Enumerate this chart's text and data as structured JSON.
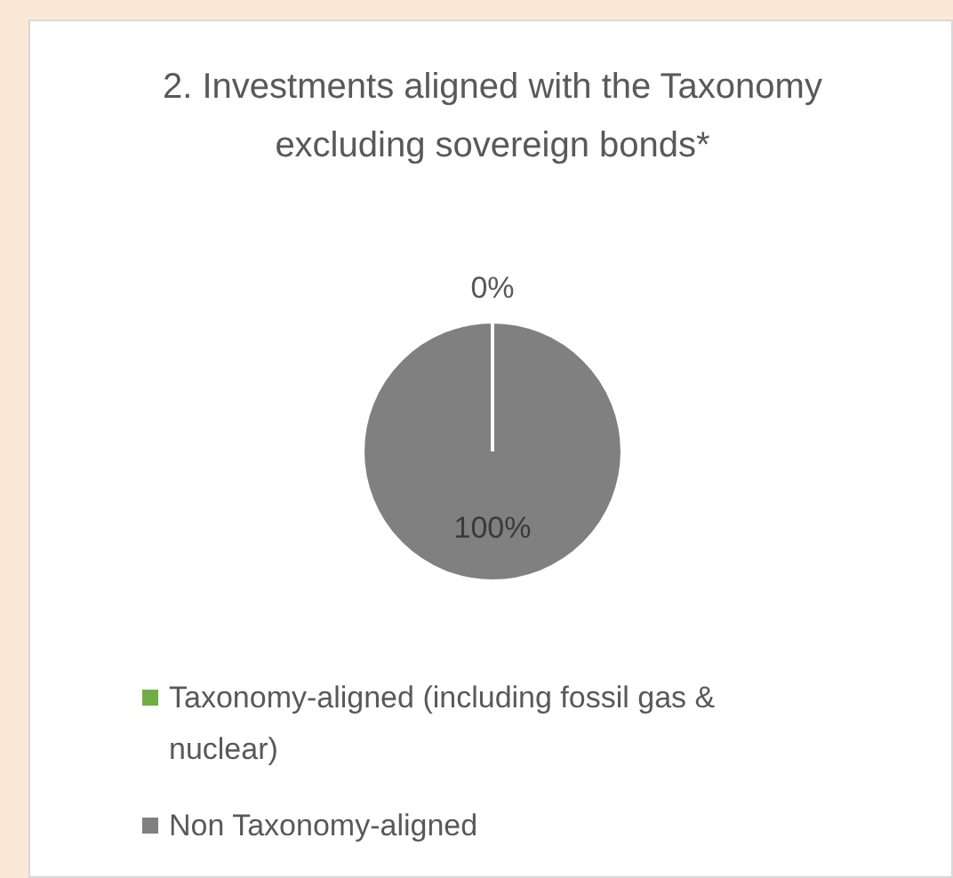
{
  "chart_data": {
    "type": "pie",
    "title": "2. Investments aligned with the Taxonomy excluding sovereign bonds*",
    "categories": [
      "Taxonomy-aligned (including fossil gas & nuclear)",
      "Non Taxonomy-aligned"
    ],
    "values": [
      0,
      100
    ],
    "colors": [
      "#70ad47",
      "#808080"
    ],
    "value_labels": [
      "0%",
      "100%"
    ],
    "legend": "bottom"
  }
}
